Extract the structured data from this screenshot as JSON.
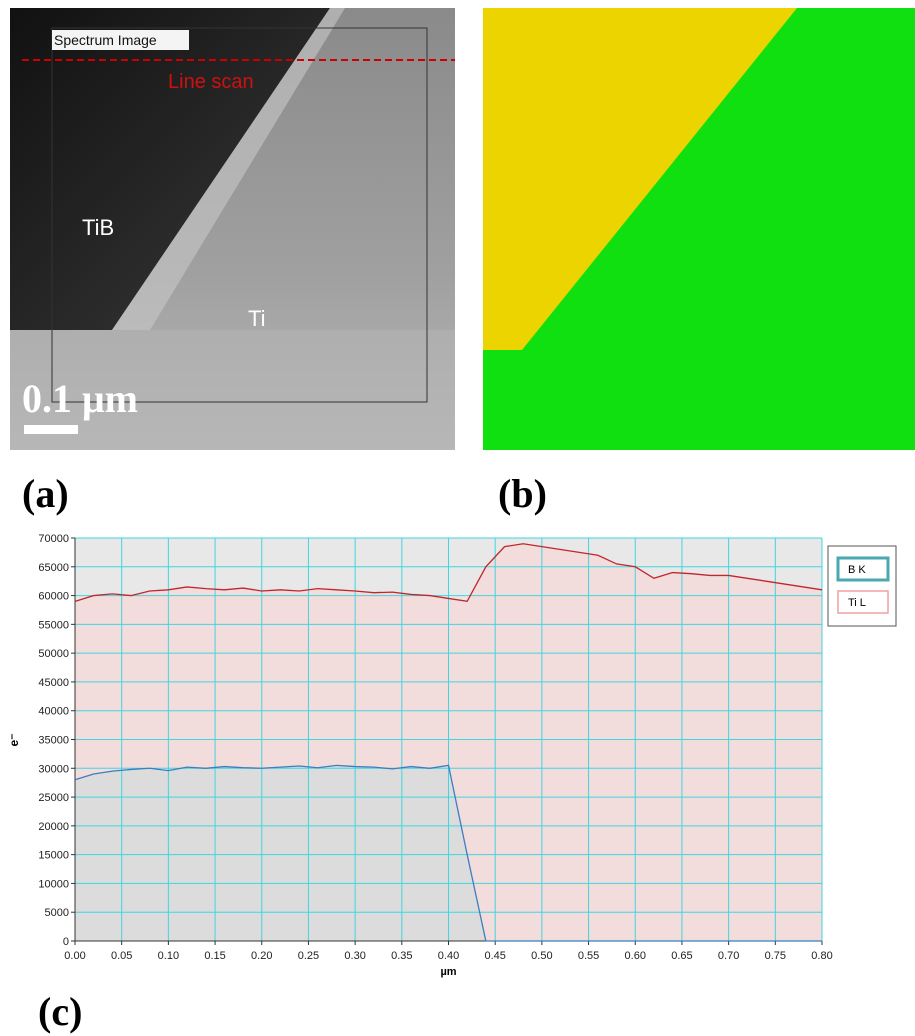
{
  "image_a": {
    "label": "(a)",
    "box_title": "Spectrum Image",
    "scan_label": "Line scan",
    "region_1": "TiB",
    "region_2": "Ti",
    "scale": "0.1 μm"
  },
  "image_b": {
    "label": "(b)"
  },
  "chart_label": "(c)",
  "chart_data": {
    "type": "line",
    "x_label": "µm",
    "y_label": "e⁻",
    "x": [
      0,
      0.02,
      0.04,
      0.06,
      0.08,
      0.1,
      0.12,
      0.14,
      0.16,
      0.18,
      0.2,
      0.22,
      0.24,
      0.26,
      0.28,
      0.3,
      0.32,
      0.34,
      0.36,
      0.38,
      0.4,
      0.42,
      0.44,
      0.46,
      0.48,
      0.5,
      0.52,
      0.54,
      0.56,
      0.58,
      0.6,
      0.62,
      0.64,
      0.66,
      0.68,
      0.7,
      0.72,
      0.74,
      0.76,
      0.78,
      0.8
    ],
    "series": [
      {
        "name": "B K",
        "color": "#3a7fbf",
        "area_color": "#dcdcdc",
        "legend_color": "#4aa8b0",
        "values": [
          28000,
          29000,
          29500,
          29800,
          30000,
          29600,
          30200,
          30000,
          30300,
          30100,
          30000,
          30200,
          30400,
          30100,
          30500,
          30300,
          30200,
          29900,
          30300,
          30000,
          30500,
          15000,
          0,
          0,
          0,
          0,
          0,
          0,
          0,
          0,
          0,
          0,
          0,
          0,
          0,
          0,
          0,
          0,
          0,
          0,
          0
        ]
      },
      {
        "name": "Ti L",
        "color": "#c0272d",
        "area_color": "#f2dcdc",
        "legend_color": "#f0a0a0",
        "values": [
          59000,
          60000,
          60300,
          60000,
          60800,
          61000,
          61500,
          61200,
          61000,
          61300,
          60800,
          61000,
          60800,
          61200,
          61000,
          60800,
          60500,
          60600,
          60200,
          60000,
          59500,
          59000,
          65000,
          68500,
          69000,
          68500,
          68000,
          67500,
          67000,
          65500,
          65000,
          63000,
          64000,
          63800,
          63500,
          63500,
          63000,
          62500,
          62000,
          61500,
          61000
        ]
      }
    ],
    "xlim": [
      0,
      0.8
    ],
    "ylim": [
      0,
      70000
    ],
    "xticks": [
      {
        "value": 0,
        "label": "0.00"
      },
      {
        "value": 0.05,
        "label": "0.05"
      },
      {
        "value": 0.1,
        "label": "0.10"
      },
      {
        "value": 0.15,
        "label": "0.15"
      },
      {
        "value": 0.2,
        "label": "0.20"
      },
      {
        "value": 0.25,
        "label": "0.25"
      },
      {
        "value": 0.3,
        "label": "0.30"
      },
      {
        "value": 0.35,
        "label": "0.35"
      },
      {
        "value": 0.4,
        "label": "0.40"
      },
      {
        "value": 0.45,
        "label": "0.45"
      },
      {
        "value": 0.5,
        "label": "0.50"
      },
      {
        "value": 0.55,
        "label": "0.55"
      },
      {
        "value": 0.6,
        "label": "0.60"
      },
      {
        "value": 0.65,
        "label": "0.65"
      },
      {
        "value": 0.7,
        "label": "0.70"
      },
      {
        "value": 0.75,
        "label": "0.75"
      },
      {
        "value": 0.8,
        "label": "0.80"
      }
    ],
    "yticks": [
      0,
      5000,
      10000,
      15000,
      20000,
      25000,
      30000,
      35000,
      40000,
      45000,
      50000,
      55000,
      60000,
      65000,
      70000
    ],
    "grid": true,
    "grid_color": "#3fd6e0",
    "background": "#e8e8e8"
  }
}
